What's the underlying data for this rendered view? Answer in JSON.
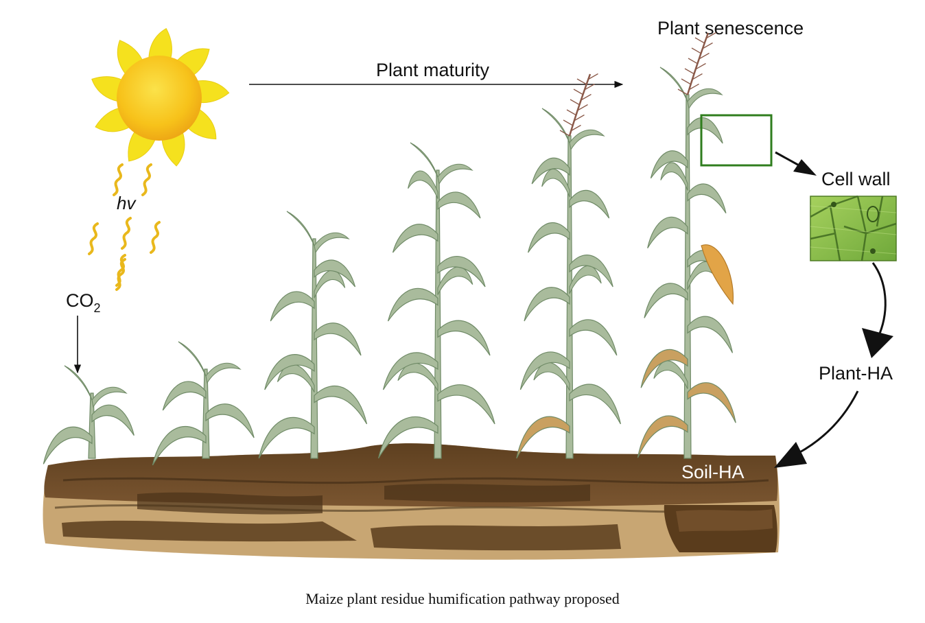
{
  "labels": {
    "plant_maturity": "Plant maturity",
    "plant_senescence": "Plant senescence",
    "hv": "hv",
    "co2_main": "CO",
    "co2_sub": "2",
    "cell_wall": "Cell wall",
    "plant_ha": "Plant-HA",
    "soil_ha": "Soil-HA"
  },
  "caption": "Maize plant residue humification pathway proposed",
  "stages": [
    {
      "name": "seedling",
      "tassel": false,
      "ear": false
    },
    {
      "name": "young",
      "tassel": false,
      "ear": false
    },
    {
      "name": "vegetative",
      "tassel": false,
      "ear": false
    },
    {
      "name": "tall",
      "tassel": false,
      "ear": false
    },
    {
      "name": "tasseling",
      "tassel": true,
      "ear": false
    },
    {
      "name": "senescent",
      "tassel": true,
      "ear": true
    }
  ],
  "colors": {
    "sun_core": "#f7c21a",
    "sun_rays": "#f5e11e",
    "light_waves": "#e9b81c",
    "leaf": "#a9bb9c",
    "leaf_dark": "#6f8a66",
    "leaf_dry": "#c9a060",
    "soil": "#6b4a26",
    "soil_dark": "#4a3218",
    "soil_light": "#c8a673",
    "tassel": "#8b5a4a",
    "ear": "#e2a447",
    "highlight_box": "#2f7d1e",
    "cell_wall_tile": "#8ec24a"
  }
}
